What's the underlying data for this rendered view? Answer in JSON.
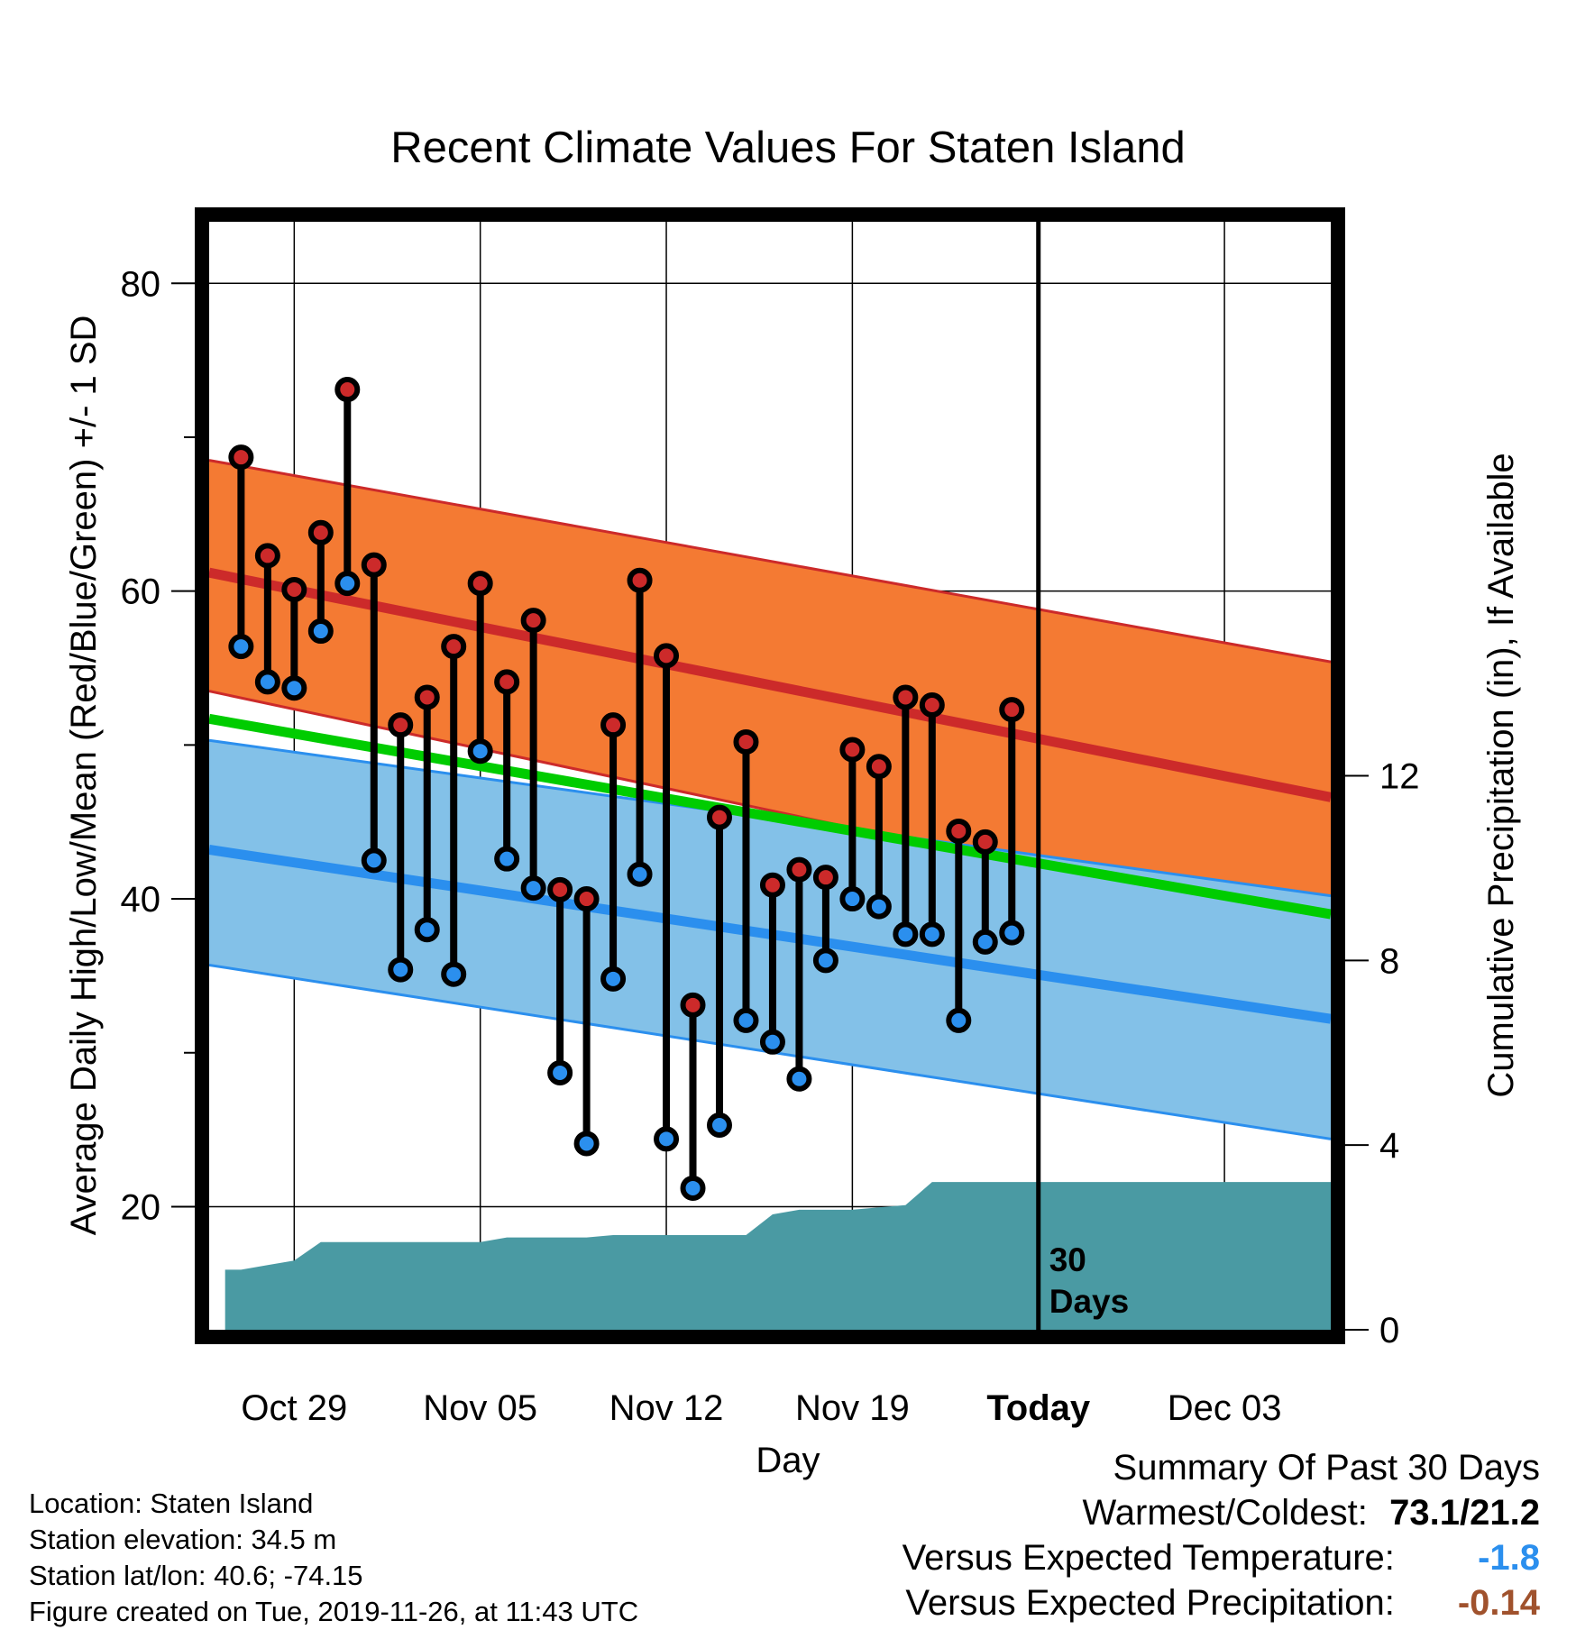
{
  "chart_data": {
    "type": "line",
    "title": "Recent Climate Values For Staten Island",
    "xlabel": "Day",
    "ylabel": "Average Daily High/Low/Mean (Red/Blue/Green) +/- 1 SD",
    "y2label": "Cumulative Precipitation (in), If Available",
    "xlim": [
      -3.2,
      39.0
    ],
    "ylim": [
      12,
      84
    ],
    "y2lim": [
      0,
      24
    ],
    "x_ticks": [
      {
        "x": 0,
        "label": "Oct 29"
      },
      {
        "x": 7,
        "label": "Nov 05"
      },
      {
        "x": 14,
        "label": "Nov 12"
      },
      {
        "x": 21,
        "label": "Nov 19"
      },
      {
        "x": 28,
        "label": "Today"
      },
      {
        "x": 35,
        "label": "Dec 03"
      }
    ],
    "y_ticks": [
      20,
      40,
      60,
      80
    ],
    "y2_ticks": [
      0,
      4,
      8,
      12
    ],
    "today_x": 28,
    "today_label": [
      "30",
      "Days"
    ],
    "normals": {
      "x_range": [
        -3.2,
        39.0
      ],
      "high_mean": [
        61.2,
        46.6
      ],
      "high_upper": [
        68.5,
        55.4
      ],
      "high_lower": [
        53.5,
        38.0
      ],
      "low_mean": [
        43.2,
        32.2
      ],
      "low_upper": [
        50.3,
        40.2
      ],
      "low_lower": [
        35.7,
        24.4
      ],
      "avg_mean": [
        51.7,
        39.0
      ]
    },
    "series": [
      {
        "name": "High",
        "color": "#cc2a2a",
        "x": [
          -2,
          -1,
          0,
          1,
          2,
          3,
          4,
          5,
          6,
          7,
          8,
          9,
          10,
          11,
          12,
          13,
          14,
          15,
          16,
          17,
          18,
          19,
          20,
          21,
          22,
          23,
          24,
          25,
          26,
          27
        ],
        "values": [
          68.7,
          62.3,
          60.1,
          63.8,
          73.1,
          61.7,
          51.3,
          53.1,
          56.4,
          60.5,
          54.1,
          58.1,
          40.6,
          40.0,
          51.3,
          60.7,
          55.8,
          33.1,
          45.3,
          50.2,
          40.9,
          41.9,
          41.4,
          49.7,
          48.6,
          53.1,
          52.6,
          44.4,
          43.7,
          52.3
        ]
      },
      {
        "name": "Low",
        "color": "#2b8fee",
        "x": [
          -2,
          -1,
          0,
          1,
          2,
          3,
          4,
          5,
          6,
          7,
          8,
          9,
          10,
          11,
          12,
          13,
          14,
          15,
          16,
          17,
          18,
          19,
          20,
          21,
          22,
          23,
          24,
          25,
          26,
          27
        ],
        "values": [
          56.4,
          54.1,
          53.7,
          57.4,
          60.5,
          42.5,
          35.4,
          38.0,
          35.1,
          49.6,
          42.6,
          40.7,
          28.7,
          24.1,
          34.8,
          41.6,
          24.4,
          21.2,
          25.3,
          32.1,
          30.7,
          28.3,
          36.0,
          40.0,
          39.5,
          37.7,
          37.7,
          32.1,
          37.2,
          37.8
        ]
      },
      {
        "name": "Cumulative Precipitation",
        "color": "#4a9aa3",
        "x": [
          -2.6,
          -2,
          -1,
          0,
          1,
          2,
          3,
          4,
          5,
          6,
          7,
          8,
          9,
          10,
          11,
          12,
          13,
          14,
          15,
          16,
          17,
          18,
          19,
          20,
          21,
          22,
          23,
          24,
          25,
          26,
          27,
          28,
          29,
          30,
          31,
          32,
          33,
          34,
          35,
          36,
          37,
          38,
          39
        ],
        "values": [
          1.3,
          1.3,
          1.4,
          1.5,
          1.9,
          1.9,
          1.9,
          1.9,
          1.9,
          1.9,
          1.9,
          2.0,
          2.0,
          2.0,
          2.0,
          2.05,
          2.05,
          2.05,
          2.05,
          2.05,
          2.05,
          2.5,
          2.6,
          2.6,
          2.6,
          2.65,
          2.7,
          3.2,
          3.2,
          3.2,
          3.2,
          3.2,
          3.2,
          3.2,
          3.2,
          3.2,
          3.2,
          3.2,
          3.2,
          3.2,
          3.2,
          3.2,
          3.2
        ]
      }
    ]
  },
  "info": {
    "location": "Location: Staten Island",
    "elevation": "Station elevation: 34.5 m",
    "latlon": "Station lat/lon: 40.6; -74.15",
    "created": "Figure created on Tue, 2019-11-26, at 11:43 UTC"
  },
  "summary": {
    "heading": "Summary Of Past 30 Days",
    "warmest_label": "Warmest/Coldest:",
    "warmest_value": "73.1/21.2",
    "temp_label": "Versus Expected Temperature:",
    "temp_value": "-1.8",
    "temp_color": "#2b8fee",
    "precip_label": "Versus Expected Precipitation:",
    "precip_value": "-0.14",
    "precip_color": "#a0522d"
  },
  "colors": {
    "high_band": "#f47a33",
    "high_line": "#cc2a2a",
    "low_band": "#83c1e8",
    "low_line": "#2b8fee",
    "mean_line": "#00cc00",
    "precip": "#4a9aa3"
  }
}
